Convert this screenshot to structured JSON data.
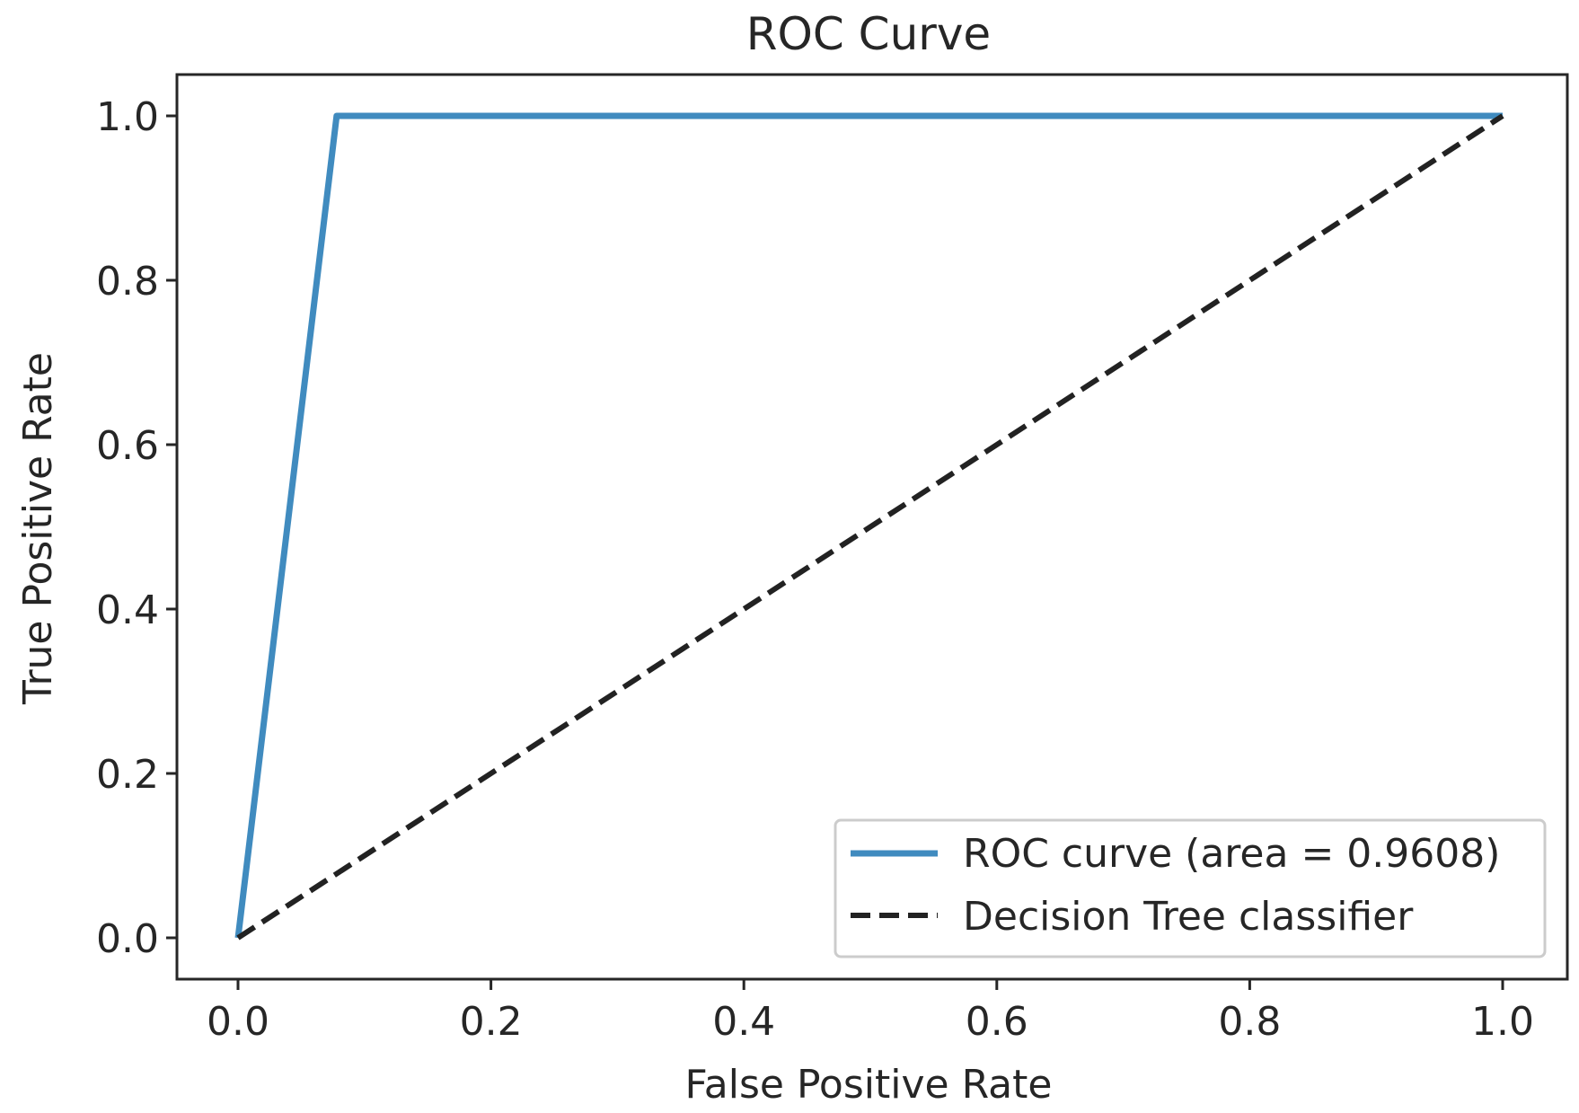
{
  "chart_data": {
    "type": "line",
    "title": "ROC Curve",
    "xlabel": "False Positive Rate",
    "ylabel": "True Positive Rate",
    "xlim": [
      -0.05,
      1.05
    ],
    "ylim": [
      -0.05,
      1.05
    ],
    "xticks": [
      0.0,
      0.2,
      0.4,
      0.6,
      0.8,
      1.0
    ],
    "yticks": [
      0.0,
      0.2,
      0.4,
      0.6,
      0.8,
      1.0
    ],
    "xtick_labels": [
      "0.0",
      "0.2",
      "0.4",
      "0.6",
      "0.8",
      "1.0"
    ],
    "ytick_labels": [
      "0.0",
      "0.2",
      "0.4",
      "0.6",
      "0.8",
      "1.0"
    ],
    "legend_position": "lower-right",
    "series": [
      {
        "name": "ROC curve (area = 0.9608)",
        "color": "#1f77b4",
        "style": "solid",
        "x": [
          0.0,
          0.078,
          1.0
        ],
        "y": [
          0.0,
          1.0,
          1.0
        ]
      },
      {
        "name": "Decision Tree  classifier",
        "color": "#222222",
        "style": "dashed",
        "x": [
          0.0,
          1.0
        ],
        "y": [
          0.0,
          1.0
        ]
      }
    ]
  }
}
